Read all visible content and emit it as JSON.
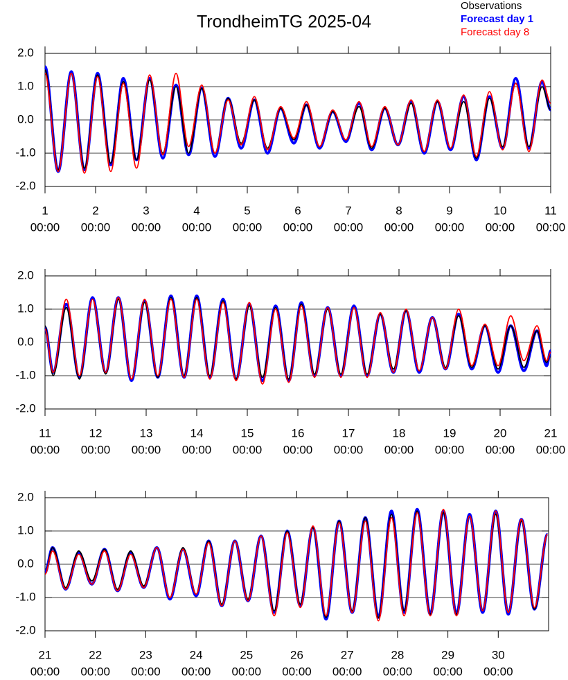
{
  "title": "TrondheimTG 2025-04",
  "chart_data": [
    {
      "type": "line",
      "xlim": [
        1,
        11
      ],
      "xticks": [
        1,
        2,
        3,
        4,
        5,
        6,
        7,
        8,
        9,
        10,
        11
      ],
      "xtick_sublabel": "00:00",
      "ylim": [
        -2,
        2
      ],
      "yticks": [
        {
          "value": -2,
          "label": "-2.0"
        },
        {
          "value": -1,
          "label": "-1.0"
        },
        {
          "value": 0,
          "label": "0.0"
        },
        {
          "value": 1,
          "label": "1.0"
        },
        {
          "value": 2,
          "label": "2.0"
        }
      ],
      "x": [
        1.0,
        1.26,
        1.52,
        1.78,
        2.04,
        2.3,
        2.55,
        2.81,
        3.07,
        3.33,
        3.59,
        3.84,
        4.1,
        4.36,
        4.62,
        4.88,
        5.14,
        5.4,
        5.66,
        5.92,
        6.17,
        6.43,
        6.69,
        6.95,
        7.21,
        7.46,
        7.72,
        7.98,
        8.24,
        8.5,
        8.76,
        9.02,
        9.28,
        9.53,
        9.79,
        10.05,
        10.31,
        10.57,
        10.83,
        11.0
      ],
      "series": [
        {
          "name": "Observations",
          "color": "#000000",
          "values": [
            1.5,
            -1.5,
            1.4,
            -1.45,
            1.35,
            -1.3,
            1.15,
            -1.2,
            1.2,
            -1.0,
            1.0,
            -1.0,
            0.95,
            -1.0,
            0.65,
            -0.7,
            0.6,
            -0.85,
            0.35,
            -0.6,
            0.45,
            -0.8,
            0.25,
            -0.6,
            0.4,
            -0.85,
            0.35,
            -0.75,
            0.5,
            -0.95,
            0.55,
            -0.85,
            0.55,
            -1.15,
            0.65,
            -0.8,
            1.1,
            -0.8,
            1.0,
            0.3
          ]
        },
        {
          "name": "Forecast day 1",
          "color": "#0000ff",
          "values": [
            1.6,
            -1.55,
            1.45,
            -1.5,
            1.4,
            -1.35,
            1.25,
            -1.2,
            1.25,
            -1.15,
            1.05,
            -1.05,
            0.95,
            -1.1,
            0.65,
            -0.85,
            0.6,
            -1.0,
            0.35,
            -0.7,
            0.45,
            -0.85,
            0.25,
            -0.65,
            0.5,
            -0.9,
            0.35,
            -0.75,
            0.55,
            -1.0,
            0.55,
            -0.9,
            0.7,
            -1.2,
            0.7,
            -0.85,
            1.25,
            -0.85,
            1.15,
            0.3
          ]
        },
        {
          "name": "Forecast day 8",
          "color": "#ff0000",
          "values": [
            1.4,
            -1.55,
            1.4,
            -1.6,
            1.3,
            -1.55,
            1.1,
            -1.45,
            1.35,
            -1.05,
            1.4,
            -0.8,
            1.05,
            -1.0,
            0.6,
            -0.75,
            0.7,
            -0.9,
            0.4,
            -0.55,
            0.55,
            -0.8,
            0.3,
            -0.6,
            0.55,
            -0.8,
            0.4,
            -0.75,
            0.6,
            -0.95,
            0.6,
            -0.85,
            0.75,
            -1.1,
            0.85,
            -0.9,
            1.1,
            -0.95,
            1.2,
            0.5
          ]
        }
      ]
    },
    {
      "type": "line",
      "xlim": [
        11,
        21
      ],
      "xticks": [
        11,
        12,
        13,
        14,
        15,
        16,
        17,
        18,
        19,
        20,
        21
      ],
      "xtick_sublabel": "00:00",
      "ylim": [
        -2,
        2
      ],
      "yticks": [
        {
          "value": -2,
          "label": "-2.0"
        },
        {
          "value": -1,
          "label": "-1.0"
        },
        {
          "value": 0,
          "label": "0.0"
        },
        {
          "value": 1,
          "label": "1.0"
        },
        {
          "value": 2,
          "label": "2.0"
        }
      ],
      "x": [
        11.0,
        11.16,
        11.42,
        11.68,
        11.94,
        12.2,
        12.45,
        12.71,
        12.97,
        13.23,
        13.49,
        13.75,
        14.0,
        14.26,
        14.52,
        14.78,
        15.04,
        15.3,
        15.56,
        15.82,
        16.07,
        16.33,
        16.59,
        16.85,
        17.11,
        17.37,
        17.63,
        17.89,
        18.14,
        18.4,
        18.66,
        18.92,
        19.18,
        19.44,
        19.7,
        19.96,
        20.21,
        20.47,
        20.73,
        20.92,
        21.0
      ],
      "series": [
        {
          "name": "Observations",
          "color": "#000000",
          "values": [
            0.5,
            -1.0,
            1.05,
            -1.1,
            1.3,
            -0.95,
            1.3,
            -1.1,
            1.2,
            -1.05,
            1.35,
            -1.0,
            1.35,
            -1.0,
            1.25,
            -1.1,
            1.1,
            -1.05,
            1.05,
            -1.1,
            1.15,
            -0.95,
            1.0,
            -0.95,
            1.05,
            -0.95,
            0.85,
            -0.8,
            0.95,
            -0.85,
            0.75,
            -0.75,
            0.8,
            -0.75,
            0.5,
            -0.8,
            0.5,
            -0.75,
            0.35,
            -0.6,
            -0.3
          ]
        },
        {
          "name": "Forecast day 1",
          "color": "#0000ff",
          "values": [
            0.45,
            -0.9,
            1.15,
            -1.05,
            1.35,
            -0.9,
            1.35,
            -1.15,
            1.25,
            -1.05,
            1.4,
            -1.05,
            1.4,
            -1.05,
            1.3,
            -1.1,
            1.15,
            -1.15,
            1.1,
            -1.15,
            1.2,
            -1.0,
            1.05,
            -1.0,
            1.1,
            -1.0,
            0.85,
            -0.9,
            0.95,
            -0.9,
            0.75,
            -0.8,
            0.85,
            -0.8,
            0.5,
            -0.9,
            0.5,
            -0.85,
            0.35,
            -0.7,
            -0.25
          ]
        },
        {
          "name": "Forecast day 8",
          "color": "#ff0000",
          "values": [
            0.4,
            -0.9,
            1.3,
            -1.0,
            1.3,
            -0.9,
            1.35,
            -1.1,
            1.3,
            -1.0,
            1.3,
            -1.05,
            1.3,
            -1.1,
            1.2,
            -1.15,
            1.2,
            -1.25,
            1.0,
            -1.2,
            1.1,
            -1.05,
            1.05,
            -1.05,
            1.05,
            -1.05,
            0.9,
            -0.9,
            1.0,
            -0.85,
            0.75,
            -0.8,
            1.0,
            -0.7,
            0.55,
            -0.7,
            0.8,
            -0.55,
            0.5,
            -0.55,
            -0.3
          ]
        }
      ]
    },
    {
      "type": "line",
      "xlim": [
        21,
        31
      ],
      "xticks": [
        21,
        22,
        23,
        24,
        25,
        26,
        27,
        28,
        29,
        30
      ],
      "xtick_sublabel": "00:00",
      "ylim": [
        -2,
        2
      ],
      "yticks": [
        {
          "value": -2,
          "label": "-2.0"
        },
        {
          "value": -1,
          "label": "-1.0"
        },
        {
          "value": 0,
          "label": "0.0"
        },
        {
          "value": 1,
          "label": "1.0"
        },
        {
          "value": 2,
          "label": "2.0"
        }
      ],
      "x": [
        21.0,
        21.15,
        21.41,
        21.67,
        21.93,
        22.18,
        22.44,
        22.7,
        22.96,
        23.22,
        23.48,
        23.74,
        24.0,
        24.25,
        24.51,
        24.77,
        25.03,
        25.29,
        25.55,
        25.81,
        26.07,
        26.32,
        26.58,
        26.84,
        27.1,
        27.36,
        27.62,
        27.88,
        28.13,
        28.39,
        28.65,
        28.91,
        29.17,
        29.43,
        29.69,
        29.95,
        30.2,
        30.46,
        30.72,
        30.98
      ],
      "series": [
        {
          "name": "Observations",
          "color": "#000000",
          "values": [
            -0.3,
            0.5,
            -0.7,
            0.4,
            -0.5,
            0.45,
            -0.75,
            0.4,
            -0.65,
            0.5,
            -1.0,
            0.5,
            -0.9,
            0.7,
            -1.2,
            0.7,
            -1.05,
            0.85,
            -1.4,
            1.0,
            -1.2,
            1.1,
            -1.6,
            1.3,
            -1.4,
            1.4,
            -1.6,
            1.5,
            -1.4,
            1.6,
            -1.5,
            1.55,
            -1.5,
            1.45,
            -1.4,
            1.5,
            -1.45,
            1.3,
            -1.35,
            0.9
          ]
        },
        {
          "name": "Forecast day 1",
          "color": "#0000ff",
          "values": [
            -0.25,
            0.5,
            -0.75,
            0.35,
            -0.6,
            0.45,
            -0.8,
            0.35,
            -0.7,
            0.5,
            -1.05,
            0.45,
            -0.95,
            0.7,
            -1.25,
            0.7,
            -1.1,
            0.85,
            -1.45,
            1.0,
            -1.25,
            1.1,
            -1.65,
            1.3,
            -1.45,
            1.4,
            -1.6,
            1.6,
            -1.45,
            1.65,
            -1.5,
            1.6,
            -1.5,
            1.5,
            -1.45,
            1.6,
            -1.5,
            1.35,
            -1.35,
            0.9
          ]
        },
        {
          "name": "Forecast day 8",
          "color": "#ff0000",
          "values": [
            -0.3,
            0.4,
            -0.75,
            0.3,
            -0.6,
            0.4,
            -0.8,
            0.3,
            -0.7,
            0.5,
            -1.0,
            0.45,
            -0.9,
            0.65,
            -1.25,
            0.7,
            -1.1,
            0.85,
            -1.55,
            0.95,
            -1.3,
            1.15,
            -1.55,
            1.25,
            -1.45,
            1.3,
            -1.7,
            1.4,
            -1.55,
            1.55,
            -1.55,
            1.65,
            -1.55,
            1.45,
            -1.4,
            1.6,
            -1.45,
            1.35,
            -1.3,
            0.9
          ]
        }
      ]
    }
  ]
}
